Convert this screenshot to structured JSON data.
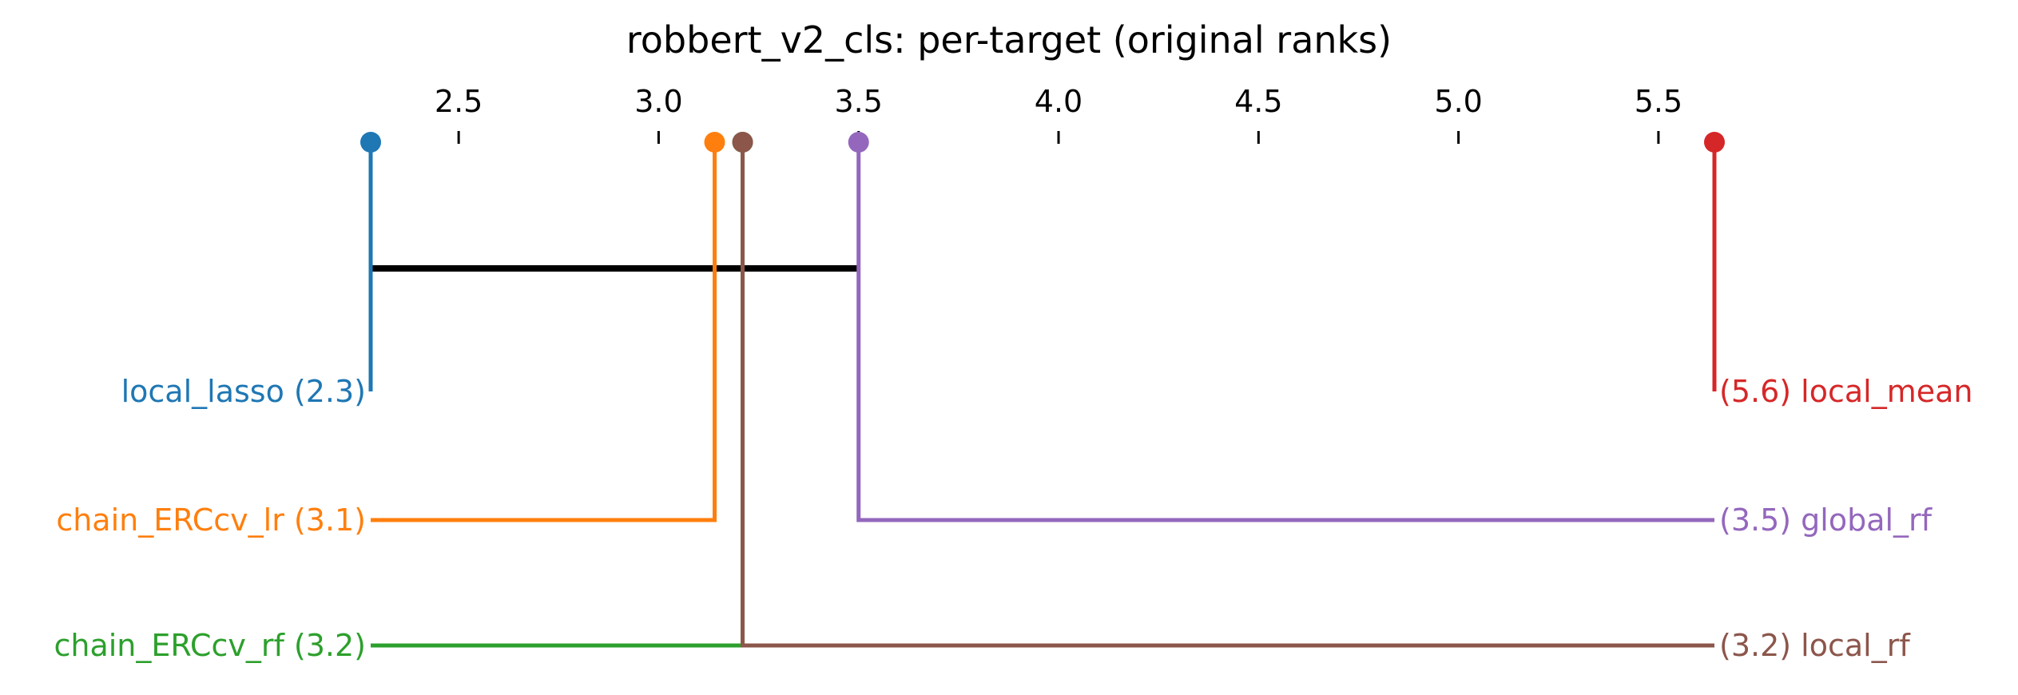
{
  "chart_data": {
    "type": "critical-difference",
    "title": "robbert_v2_cls: per-target (original ranks)",
    "xlabel": "",
    "ylabel": "",
    "xlim": [
      2.28,
      5.64
    ],
    "ticks": [
      "2.5",
      "3.0",
      "3.5",
      "4.0",
      "4.5",
      "5.0",
      "5.5"
    ],
    "tick_values": [
      2.5,
      3.0,
      3.5,
      4.0,
      4.5,
      5.0,
      5.5
    ],
    "methods": [
      {
        "name": "local_lasso",
        "rank": 2.28,
        "label": "local_lasso (2.3)",
        "side": "left",
        "color": "#1f77b4"
      },
      {
        "name": "chain_ERCcv_lr",
        "rank": 3.14,
        "label": "chain_ERCcv_lr (3.1)",
        "side": "left",
        "color": "#ff7f0e"
      },
      {
        "name": "chain_ERCcv_rf",
        "rank": 3.21,
        "label": "chain_ERCcv_rf (3.2)",
        "side": "left",
        "color": "#2ca02c"
      },
      {
        "name": "local_mean",
        "rank": 5.64,
        "label": "(5.6) local_mean",
        "side": "right",
        "color": "#d62728"
      },
      {
        "name": "global_rf",
        "rank": 3.5,
        "label": "(3.5) global_rf",
        "side": "right",
        "color": "#9467bd"
      },
      {
        "name": "local_rf",
        "rank": 3.21,
        "label": "(3.2) local_rf",
        "side": "right",
        "color": "#8c564b"
      }
    ],
    "cliques": [
      {
        "from": 2.28,
        "to": 3.5
      }
    ],
    "grid": false,
    "legend": "none"
  }
}
